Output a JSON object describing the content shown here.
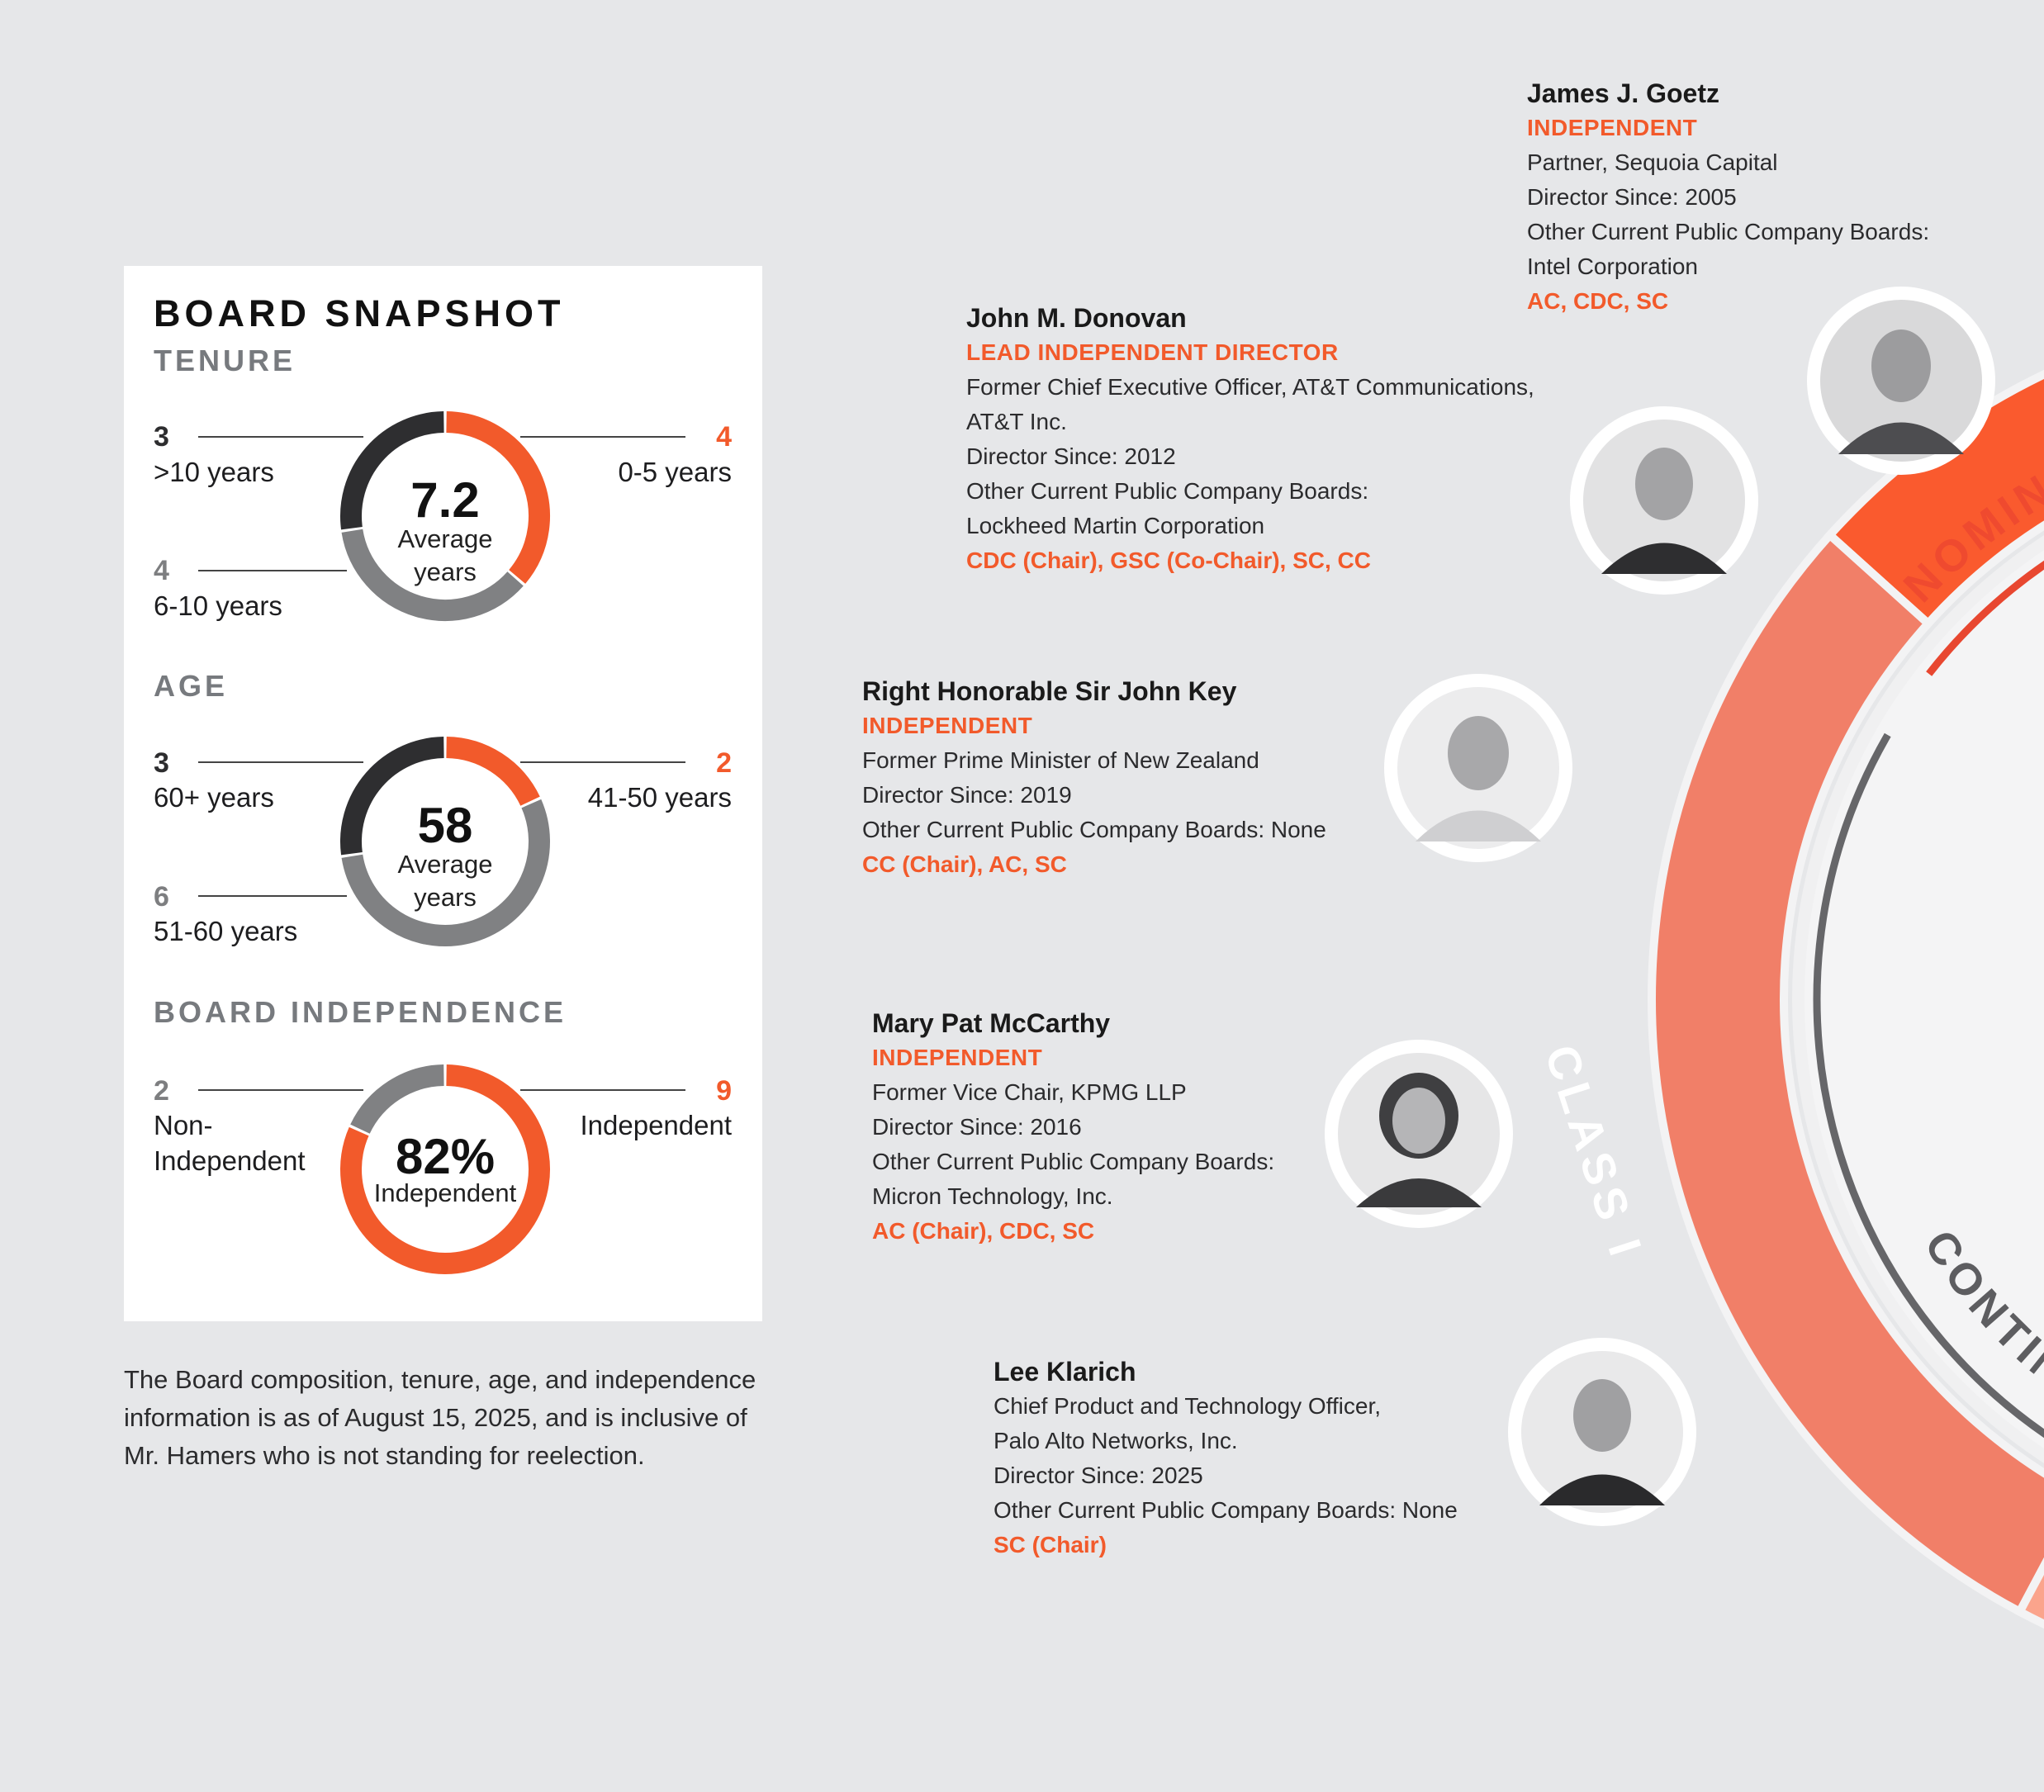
{
  "snapshot": {
    "title": "BOARD SNAPSHOT",
    "tenure": {
      "heading": "TENURE",
      "center_value": "7.2",
      "center_label_1": "Average",
      "center_label_2": "years",
      "segments": [
        {
          "count": "4",
          "label": "0-5 years",
          "value": 4,
          "color": "#f25a2b"
        },
        {
          "count": "4",
          "label": "6-10 years",
          "value": 4,
          "color": "#808183"
        },
        {
          "count": "3",
          "label": ">10 years",
          "value": 3,
          "color": "#2e2e30"
        }
      ]
    },
    "age": {
      "heading": "AGE",
      "center_value": "58",
      "center_label_1": "Average",
      "center_label_2": "years",
      "segments": [
        {
          "count": "2",
          "label": "41-50 years",
          "value": 2,
          "color": "#f25a2b"
        },
        {
          "count": "6",
          "label": "51-60 years",
          "value": 6,
          "color": "#808183"
        },
        {
          "count": "3",
          "label": "60+ years",
          "value": 3,
          "color": "#2e2e30"
        }
      ]
    },
    "independence": {
      "heading": "BOARD INDEPENDENCE",
      "center_value": "82%",
      "center_label_1": "Independent",
      "segments": [
        {
          "count": "9",
          "label": "Independent",
          "value": 9,
          "color": "#f25a2b"
        },
        {
          "count": "2",
          "label_1": "Non-",
          "label_2": "Independent",
          "value": 2,
          "color": "#808183"
        }
      ]
    }
  },
  "footnote": "The Board composition, tenure, age, and independence information is as of August 15, 2025, and is inclusive of Mr. Hamers who is not standing for reelection.",
  "ring": {
    "nominee_label": "NOMINEE DIR",
    "class_label": "CLASS I",
    "continuing_label": "CONTINUING",
    "colors": {
      "nominee": "#fa5a2e",
      "class1": "#f17f68",
      "lower": "#fba48c"
    }
  },
  "directors": [
    {
      "name": "James J. Goetz",
      "status": "INDEPENDENT",
      "lines": [
        "Partner, Sequoia Capital",
        "Director Since: 2005",
        "Other Current Public Company Boards:",
        "Intel Corporation"
      ],
      "committees": "AC, CDC, SC"
    },
    {
      "name": "John M. Donovan",
      "status": "LEAD INDEPENDENT DIRECTOR",
      "lines": [
        "Former Chief Executive Officer, AT&T Communications,",
        "AT&T Inc.",
        "Director Since: 2012",
        "Other Current Public Company Boards:",
        "Lockheed Martin Corporation"
      ],
      "committees": "CDC (Chair), GSC (Co-Chair), SC, CC"
    },
    {
      "name": "Right Honorable Sir John Key",
      "status": "INDEPENDENT",
      "lines": [
        "Former Prime Minister of New Zealand",
        "Director Since: 2019",
        "Other Current Public Company Boards: None"
      ],
      "committees": "CC (Chair), AC, SC"
    },
    {
      "name": "Mary Pat McCarthy",
      "status": "INDEPENDENT",
      "lines": [
        "Former Vice Chair, KPMG LLP",
        "Director Since: 2016",
        "Other Current Public Company Boards:",
        "Micron Technology, Inc."
      ],
      "committees": "AC (Chair), CDC, SC"
    },
    {
      "name": "Lee Klarich",
      "status": "",
      "lines": [
        "Chief Product and Technology Officer,",
        "Palo Alto Networks, Inc.",
        "Director Since: 2025",
        "Other Current Public Company Boards: None"
      ],
      "committees": "SC (Chair)"
    }
  ]
}
